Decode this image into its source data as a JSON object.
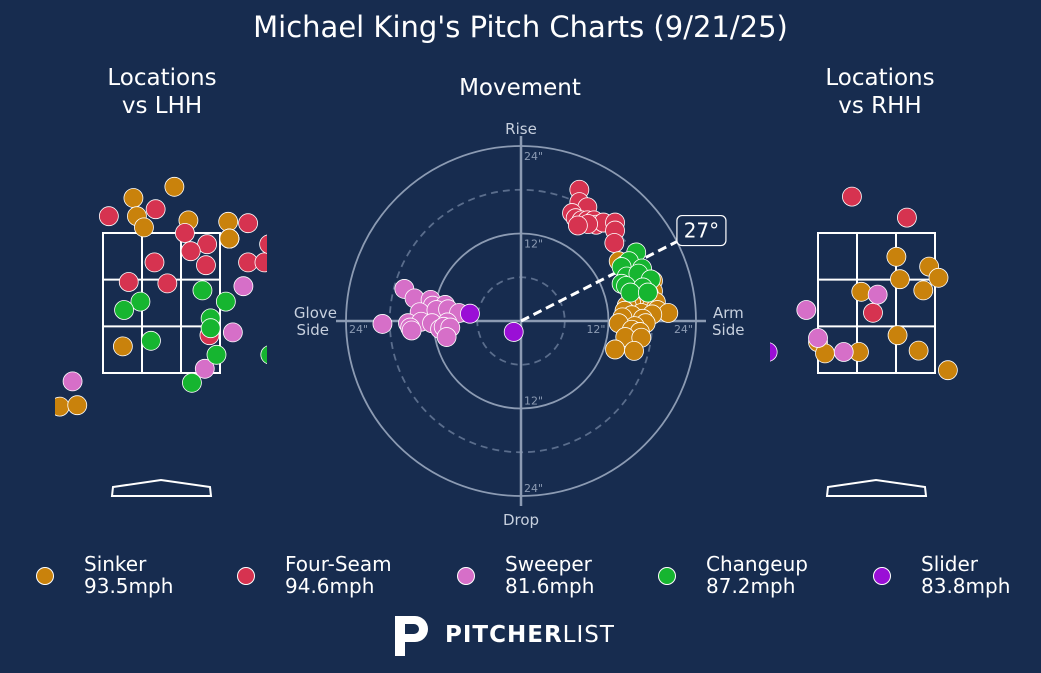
{
  "title": "Michael King's Pitch Charts (9/21/25)",
  "colors": {
    "background": "#172c4f",
    "Sinker": "#c9820c",
    "Four-Seam": "#d63350",
    "Sweeper": "#d66fc8",
    "Changeup": "#16b530",
    "Slider": "#9a0fd6"
  },
  "panels": {
    "lhh_title": "Locations\nvs LHH",
    "movement_title": "Movement",
    "rhh_title": "Locations\nvs RHH"
  },
  "movement": {
    "top_label": "Rise",
    "bottom_label": "Drop",
    "left_label": "Glove\nSide",
    "right_label": "Arm\nSide",
    "ring_labels": [
      "24\"",
      "12\"",
      "12\"",
      "24\"",
      "12\"",
      "24\"",
      "12\"",
      "24\""
    ],
    "arm_angle_label": "27°",
    "arm_angle_deg": 27
  },
  "legend": [
    {
      "pitch": "Sinker",
      "speed": "93.5mph"
    },
    {
      "pitch": "Four-Seam",
      "speed": "94.6mph"
    },
    {
      "pitch": "Sweeper",
      "speed": "81.6mph"
    },
    {
      "pitch": "Changeup",
      "speed": "87.2mph"
    },
    {
      "pitch": "Slider",
      "speed": "83.8mph"
    }
  ],
  "brand": {
    "bold": "PITCHER",
    "light": "LIST"
  },
  "chart_data": [
    {
      "type": "scatter",
      "title": "Locations vs LHH",
      "units": "zone-relative (0..1 across the strike zone)",
      "series": [
        {
          "name": "Sinker",
          "points": [
            [
              -0.37,
              -0.24
            ],
            [
              0.26,
              1.25
            ],
            [
              0.29,
              1.12
            ],
            [
              0.35,
              1.04
            ],
            [
              0.61,
              1.33
            ],
            [
              0.73,
              1.09
            ],
            [
              1.07,
              1.08
            ],
            [
              1.08,
              0.96
            ],
            [
              1.08,
              0.96
            ],
            [
              1.08,
              0.96
            ],
            [
              1.08,
              0.96
            ],
            [
              1.08,
              0.96
            ],
            [
              1.08,
              0.96
            ],
            [
              -0.22,
              -0.23
            ],
            [
              0.17,
              0.19
            ],
            [
              1.08,
              0.96
            ]
          ]
        },
        {
          "name": "Four-Seam",
          "points": [
            [
              0.05,
              1.12
            ],
            [
              0.45,
              1.17
            ],
            [
              0.7,
              1.0
            ],
            [
              0.89,
              0.92
            ],
            [
              0.75,
              0.87
            ],
            [
              1.24,
              1.07
            ],
            [
              0.44,
              0.79
            ],
            [
              0.22,
              0.65
            ],
            [
              0.55,
              0.64
            ],
            [
              0.88,
              0.77
            ],
            [
              1.24,
              0.79
            ],
            [
              1.38,
              0.79
            ],
            [
              1.42,
              0.92
            ],
            [
              0.91,
              0.27
            ]
          ]
        },
        {
          "name": "Sweeper",
          "points": [
            [
              1.2,
              0.62
            ],
            [
              1.11,
              0.29
            ],
            [
              -0.26,
              -0.06
            ],
            [
              0.87,
              0.03
            ]
          ]
        },
        {
          "name": "Changeup",
          "points": [
            [
              0.32,
              0.51
            ],
            [
              0.18,
              0.45
            ],
            [
              0.85,
              0.59
            ],
            [
              1.05,
              0.51
            ],
            [
              0.92,
              0.39
            ],
            [
              0.92,
              0.32
            ],
            [
              0.41,
              0.23
            ],
            [
              0.97,
              0.13
            ],
            [
              1.43,
              0.13
            ],
            [
              0.76,
              -0.07
            ]
          ]
        },
        {
          "name": "Slider",
          "points": []
        }
      ]
    },
    {
      "type": "scatter",
      "title": "Movement",
      "units": "inches",
      "x_range": [
        -24,
        24
      ],
      "y_range": [
        -24,
        24
      ],
      "series": [
        {
          "name": "Four-Seam",
          "points": [
            [
              8,
              18
            ],
            [
              8,
              16.3
            ],
            [
              9.1,
              15.6
            ],
            [
              7,
              14.8
            ],
            [
              7.5,
              14.1
            ],
            [
              8.3,
              13.8
            ],
            [
              9.1,
              13.8
            ],
            [
              10,
              13.8
            ],
            [
              10.3,
              13.2
            ],
            [
              11.3,
              13.5
            ],
            [
              9.2,
              13.3
            ],
            [
              7.8,
              13.1
            ],
            [
              12.9,
              13.5
            ],
            [
              12.9,
              12.4
            ],
            [
              12.8,
              10.7
            ]
          ]
        },
        {
          "name": "Sinker",
          "points": [
            [
              13.4,
              8.2
            ],
            [
              14.2,
              7.7
            ],
            [
              14.5,
              6.1
            ],
            [
              15.1,
              5.4
            ],
            [
              15.9,
              4.7
            ],
            [
              16.8,
              4.8
            ],
            [
              18.1,
              5.5
            ],
            [
              18.1,
              4.1
            ],
            [
              17.5,
              3.8
            ],
            [
              18.5,
              2.6
            ],
            [
              16.3,
              3.1
            ],
            [
              15.6,
              3.1
            ],
            [
              15.1,
              2.5
            ],
            [
              14.5,
              2.1
            ],
            [
              14.2,
              1.4
            ],
            [
              16.5,
              1.1
            ],
            [
              18.7,
              1.5
            ],
            [
              20.2,
              1.1
            ],
            [
              18,
              0.9
            ],
            [
              15.2,
              0.8
            ],
            [
              16.7,
              0.3
            ],
            [
              13.9,
              0.5
            ],
            [
              17.1,
              -0.3
            ],
            [
              15.6,
              -0.7
            ],
            [
              13.4,
              -0.3
            ],
            [
              15.2,
              -1.2
            ],
            [
              16.3,
              -1.5
            ],
            [
              14.3,
              -2.2
            ],
            [
              16.5,
              -2.3
            ],
            [
              15.5,
              -4.1
            ],
            [
              12.9,
              -3.9
            ]
          ]
        },
        {
          "name": "Changeup",
          "points": [
            [
              15.8,
              9.4
            ],
            [
              14.8,
              8.2
            ],
            [
              16.6,
              7.2
            ],
            [
              13.8,
              7.4
            ],
            [
              14.5,
              6.1
            ],
            [
              16.1,
              6.5
            ],
            [
              17.8,
              5.7
            ],
            [
              13.8,
              5.1
            ],
            [
              14.4,
              4.8
            ],
            [
              16.7,
              4.6
            ],
            [
              15,
              3.9
            ],
            [
              17.4,
              3.9
            ]
          ]
        },
        {
          "name": "Sweeper",
          "points": [
            [
              -16,
              4.4
            ],
            [
              -14.6,
              3.1
            ],
            [
              -12.4,
              2.9
            ],
            [
              -12.1,
              2.1
            ],
            [
              -10.4,
              2.2
            ],
            [
              -13.9,
              1.2
            ],
            [
              -11.6,
              1.5
            ],
            [
              -10,
              1.6
            ],
            [
              -8.5,
              1.1
            ],
            [
              -19,
              -0.4
            ],
            [
              -15.5,
              -0.3
            ],
            [
              -13.7,
              -0.1
            ],
            [
              -12.2,
              -0.3
            ],
            [
              -10.1,
              -0.2
            ],
            [
              -15.2,
              -0.9
            ],
            [
              -11.1,
              -1.1
            ],
            [
              -10.6,
              -0.8
            ],
            [
              -9.7,
              -0.9
            ],
            [
              -15,
              -1.3
            ],
            [
              -10.2,
              -2.2
            ]
          ]
        },
        {
          "name": "Slider",
          "points": [
            [
              -7,
              1
            ],
            [
              -1,
              -1.5
            ]
          ]
        }
      ]
    },
    {
      "type": "scatter",
      "title": "Locations vs RHH",
      "units": "zone-relative (0..1 across the strike zone)",
      "series": [
        {
          "name": "Four-Seam",
          "points": [
            [
              0.29,
              1.26
            ],
            [
              0.76,
              1.11
            ],
            [
              0.47,
              0.43
            ]
          ]
        },
        {
          "name": "Sinker",
          "points": [
            [
              0.67,
              0.83
            ],
            [
              0.95,
              0.76
            ],
            [
              1.03,
              0.68
            ],
            [
              0.7,
              0.67
            ],
            [
              0.37,
              0.58
            ],
            [
              0.9,
              0.59
            ],
            [
              0.68,
              0.27
            ],
            [
              0.86,
              0.16
            ],
            [
              0.0,
              0.22
            ],
            [
              0.06,
              0.14
            ],
            [
              0.35,
              0.15
            ],
            [
              1.11,
              0.02
            ]
          ]
        },
        {
          "name": "Sweeper",
          "points": [
            [
              -0.1,
              0.45
            ],
            [
              0.51,
              0.56
            ],
            [
              0.22,
              0.15
            ],
            [
              0.0,
              0.25
            ]
          ]
        },
        {
          "name": "Changeup",
          "points": []
        },
        {
          "name": "Slider",
          "points": [
            [
              -0.43,
              0.15
            ]
          ]
        }
      ]
    }
  ]
}
